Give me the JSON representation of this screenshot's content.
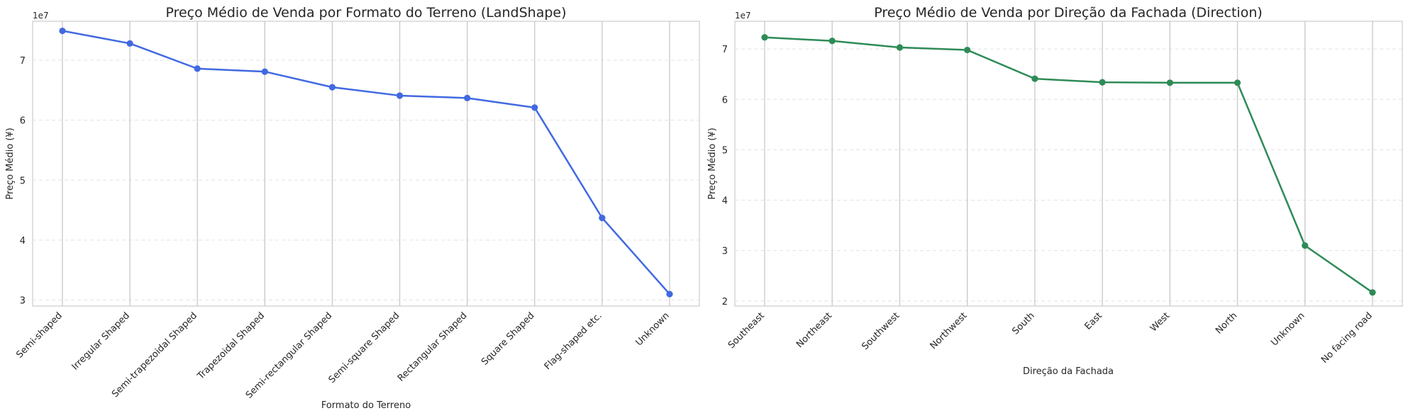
{
  "chart_data": [
    {
      "type": "line",
      "title": "Preço Médio de Venda por Formato do Terreno (LandShape)",
      "xlabel": "Formato do Terreno",
      "ylabel": "Preço Médio (¥)",
      "y_offset_label": "1e7",
      "y_unit": 10000000,
      "categories": [
        "Semi-shaped",
        "Irregular Shaped",
        "Semi-trapezoidal Shaped",
        "Trapezoidal Shaped",
        "Semi-rectangular Shaped",
        "Semi-square Shaped",
        "Rectangular Shaped",
        "Square Shaped",
        "Flag-shaped etc.",
        "Unknown"
      ],
      "values": [
        74900000,
        72800000,
        68600000,
        68100000,
        65500000,
        64100000,
        63700000,
        62100000,
        43700000,
        31000000
      ],
      "yticks": [
        3,
        4,
        5,
        6,
        7
      ],
      "ylim": [
        2.9,
        7.65
      ],
      "color": "#4169e1",
      "grid": true
    },
    {
      "type": "line",
      "title": "Preço Médio de Venda por Direção da Fachada (Direction)",
      "xlabel": "Direção da Fachada",
      "ylabel": "Preço Médio (¥)",
      "y_offset_label": "1e7",
      "y_unit": 10000000,
      "categories": [
        "Southeast",
        "Northeast",
        "Southwest",
        "Northwest",
        "South",
        "East",
        "West",
        "North",
        "Unknown",
        "No facing road"
      ],
      "values": [
        72300000,
        71600000,
        70300000,
        69800000,
        64100000,
        63400000,
        63300000,
        63300000,
        31000000,
        21700000
      ],
      "yticks": [
        2,
        3,
        4,
        5,
        6,
        7
      ],
      "ylim": [
        1.9,
        7.55
      ],
      "color": "#2e8b57",
      "grid": true
    }
  ]
}
